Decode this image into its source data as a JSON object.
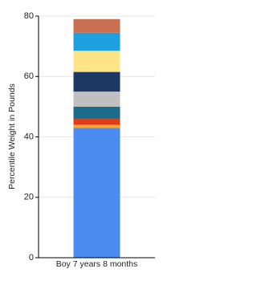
{
  "chart_data": {
    "type": "stacked_bar",
    "y_label": "Percentile Weight in Pounds",
    "categories": [
      "Boy 7 years 8 months"
    ],
    "series": [
      {
        "color": "#4a8cf0",
        "values": [
          43
        ]
      },
      {
        "color": "#f6a23a",
        "values": [
          1
        ]
      },
      {
        "color": "#dc3f18",
        "values": [
          2
        ]
      },
      {
        "color": "#1a6b8c",
        "values": [
          4
        ]
      },
      {
        "color": "#c0c0c0",
        "values": [
          5
        ]
      },
      {
        "color": "#1c3865",
        "values": [
          6.5
        ]
      },
      {
        "color": "#fee487",
        "values": [
          7
        ]
      },
      {
        "color": "#1e9fe0",
        "values": [
          6
        ]
      },
      {
        "color": "#c8704f",
        "values": [
          4.5
        ]
      }
    ],
    "ylim": [
      0,
      80
    ],
    "yticks": [
      0,
      20,
      40,
      60,
      80
    ],
    "grid": true
  }
}
